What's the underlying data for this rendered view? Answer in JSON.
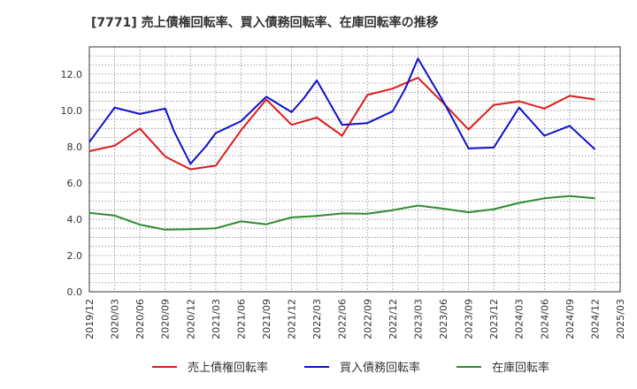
{
  "chart_data": {
    "type": "line",
    "title": "[7771]  売上債権回転率、買入債務回転率、在庫回転率の推移",
    "xlabel": "",
    "ylabel": "",
    "ylim": [
      0,
      13.5
    ],
    "yticks": [
      0.0,
      2.0,
      4.0,
      6.0,
      8.0,
      10.0,
      12.0
    ],
    "ytick_labels": [
      "0.0",
      "2.0",
      "4.0",
      "6.0",
      "8.0",
      "10.0",
      "12.0"
    ],
    "x": [
      "2019/12",
      "2020/03",
      "2020/06",
      "2020/09",
      "2020/12",
      "2021/03",
      "2021/06",
      "2021/09",
      "2021/12",
      "2022/03",
      "2022/06",
      "2022/09",
      "2022/12",
      "2023/03",
      "2023/06",
      "2023/09",
      "2023/12",
      "2024/03",
      "2024/06",
      "2024/09",
      "2024/12",
      "2025/03"
    ],
    "grid": true,
    "legend_position": "bottom",
    "series": [
      {
        "name": "売上債権回転率",
        "color": "#dd1c1c",
        "points": [
          [
            0,
            7.75
          ],
          [
            1,
            8.05
          ],
          [
            2,
            9.0
          ],
          [
            3,
            7.45
          ],
          [
            4,
            6.75
          ],
          [
            5,
            6.95
          ],
          [
            6,
            8.9
          ],
          [
            7,
            10.6
          ],
          [
            8,
            9.2
          ],
          [
            9,
            9.6
          ],
          [
            10,
            8.6
          ],
          [
            11,
            10.85
          ],
          [
            12,
            11.2
          ],
          [
            13,
            11.8
          ],
          [
            14,
            10.4
          ],
          [
            15,
            8.95
          ],
          [
            16,
            10.3
          ],
          [
            17,
            10.5
          ],
          [
            18,
            10.1
          ],
          [
            19,
            10.8
          ],
          [
            20,
            10.6
          ]
        ]
      },
      {
        "name": "買入債務回転率",
        "color": "#1010cc",
        "points": [
          [
            0,
            8.25
          ],
          [
            0.5,
            9.2
          ],
          [
            1,
            10.15
          ],
          [
            2,
            9.8
          ],
          [
            3,
            10.1
          ],
          [
            3.35,
            8.85
          ],
          [
            4,
            7.05
          ],
          [
            4.6,
            8.0
          ],
          [
            5,
            8.75
          ],
          [
            6,
            9.4
          ],
          [
            7,
            10.75
          ],
          [
            8,
            9.9
          ],
          [
            8.5,
            10.7
          ],
          [
            9,
            11.65
          ],
          [
            10,
            9.2
          ],
          [
            11,
            9.3
          ],
          [
            12,
            9.95
          ],
          [
            12.5,
            11.2
          ],
          [
            13,
            12.85
          ],
          [
            14,
            10.5
          ],
          [
            14.5,
            9.2
          ],
          [
            15,
            7.9
          ],
          [
            16,
            7.95
          ],
          [
            17,
            10.15
          ],
          [
            18,
            8.6
          ],
          [
            19,
            9.15
          ],
          [
            20,
            7.85
          ]
        ]
      },
      {
        "name": "在庫回転率",
        "color": "#2e8b2e",
        "points": [
          [
            0,
            4.35
          ],
          [
            1,
            4.2
          ],
          [
            2,
            3.7
          ],
          [
            3,
            3.42
          ],
          [
            4,
            3.45
          ],
          [
            5,
            3.5
          ],
          [
            6,
            3.88
          ],
          [
            7,
            3.72
          ],
          [
            8,
            4.1
          ],
          [
            9,
            4.18
          ],
          [
            10,
            4.32
          ],
          [
            11,
            4.3
          ],
          [
            12,
            4.5
          ],
          [
            13,
            4.75
          ],
          [
            14,
            4.58
          ],
          [
            15,
            4.38
          ],
          [
            16,
            4.55
          ],
          [
            17,
            4.9
          ],
          [
            18,
            5.15
          ],
          [
            19,
            5.28
          ],
          [
            20,
            5.15
          ]
        ]
      }
    ]
  }
}
